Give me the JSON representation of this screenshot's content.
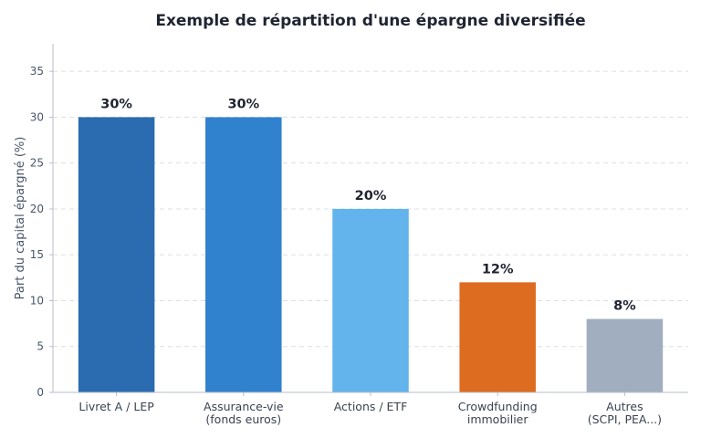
{
  "chart_data": {
    "type": "bar",
    "title": "Exemple de répartition d'une épargne diversifiée",
    "xlabel": "",
    "ylabel": "Part du capital épargné (%)",
    "ylim": [
      0,
      38
    ],
    "yticks": [
      0,
      5,
      10,
      15,
      20,
      25,
      30,
      35
    ],
    "grid": true,
    "categories": [
      [
        "Livret A / LEP"
      ],
      [
        "Assurance-vie",
        "(fonds euros)"
      ],
      [
        "Actions / ETF"
      ],
      [
        "Crowdfunding",
        "immobilier"
      ],
      [
        "Autres",
        "(SCPI, PEA...)"
      ]
    ],
    "values": [
      30,
      30,
      20,
      12,
      8
    ],
    "value_labels": [
      "30%",
      "30%",
      "20%",
      "12%",
      "8%"
    ],
    "colors": [
      "#2b6cb0",
      "#3182ce",
      "#63b3ed",
      "#dd6b20",
      "#a0aec0"
    ]
  }
}
